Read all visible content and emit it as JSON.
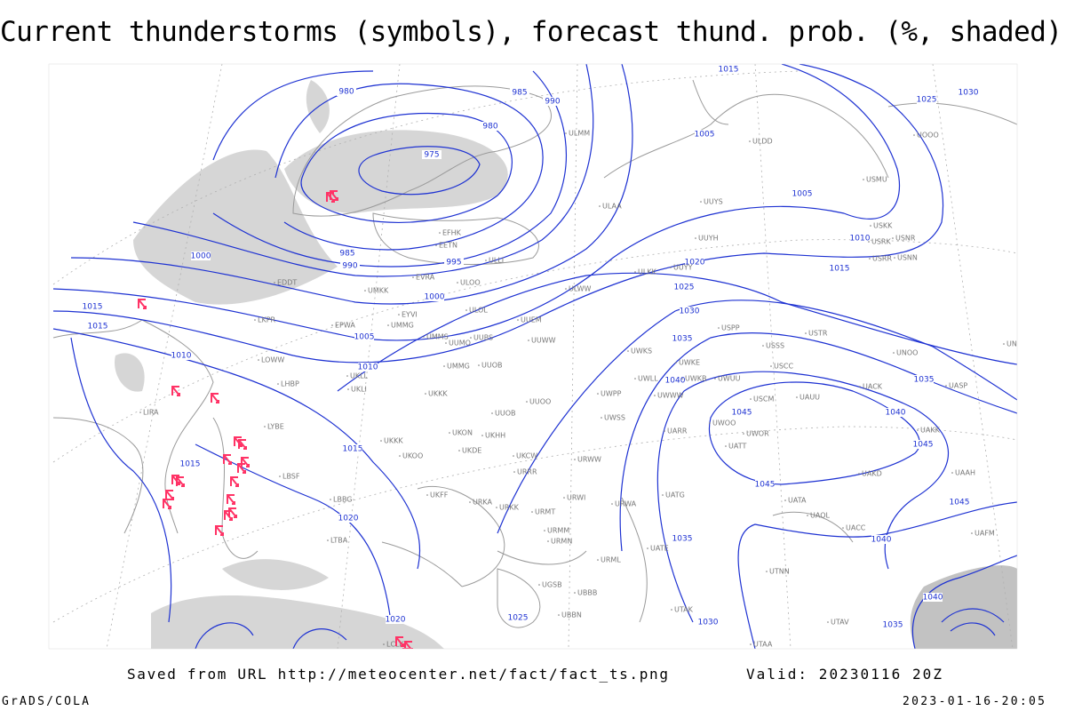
{
  "header": {
    "title": "Current thunderstorms (symbols), forecast thund. prob. (%, shaded)"
  },
  "map": {
    "isobar_labels": [
      "980",
      "985",
      "990",
      "980",
      "975",
      "985",
      "990",
      "995",
      "1000",
      "1000",
      "1005",
      "1010",
      "1010",
      "1015",
      "1015",
      "1015",
      "1015",
      "1020",
      "1020",
      "1025",
      "1030",
      "1035",
      "1040",
      "1045",
      "1045",
      "1040",
      "1045",
      "1040",
      "1035",
      "1030",
      "1025",
      "1020",
      "1015",
      "1010",
      "1005",
      "1005",
      "1015",
      "1025",
      "1030",
      "1035",
      "1045",
      "1035",
      "1040"
    ],
    "stations": [
      "ULMM",
      "ULLI",
      "ULOO",
      "ULOL",
      "UUEM",
      "UUWW",
      "UUMO",
      "UUBS",
      "UMMS",
      "UMMG",
      "UUOB",
      "UKKK",
      "UUOO",
      "UUOB",
      "UKHH",
      "UKDE",
      "UKON",
      "UKOO",
      "UKCW",
      "URRR",
      "URWW",
      "URWI",
      "UKFF",
      "URKA",
      "URKK",
      "URMT",
      "URMM",
      "URMN",
      "URWA",
      "UATG",
      "UATE",
      "URML",
      "UGSB",
      "UBBN",
      "UBBB",
      "ULWW",
      "ULAA",
      "UUYS",
      "UUYY",
      "UUYH",
      "ULKK",
      "UWKS",
      "UWKE",
      "UWKB",
      "UWLL",
      "UWWW",
      "UWPP",
      "UWSS",
      "UWUU",
      "USCM",
      "UAUU",
      "USCC",
      "USSS",
      "USPP",
      "USTR",
      "UARR",
      "UWOO",
      "UWOR",
      "UATT",
      "UAKK",
      "UAKD",
      "UATA",
      "UAOL",
      "UACC",
      "UTNN",
      "UTAK",
      "UTAA",
      "UTAV",
      "USRK",
      "USRR",
      "USNN",
      "USKK",
      "USNR",
      "USMU",
      "ULDD",
      "UOOO",
      "UNBB",
      "UNOO",
      "UACK",
      "UASP",
      "UAAH",
      "UAFM",
      "EFHK",
      "EETN",
      "EVRA",
      "UMKK",
      "EPWA",
      "UMMG",
      "EYVI",
      "UKLL",
      "UKLI",
      "LKPR",
      "LOWW",
      "LHBP",
      "LIRA",
      "LYBE",
      "LBSF",
      "UKKK",
      "LBBG",
      "LTBA",
      "LCLK",
      "EDDT"
    ]
  },
  "footer": {
    "source": "Saved from URL http://meteocenter.net/fact/fact_ts.png",
    "valid": "Valid: 20230116 20Z",
    "credit": "GrADS/COLA",
    "timestamp": "2023-01-16-20:05"
  }
}
